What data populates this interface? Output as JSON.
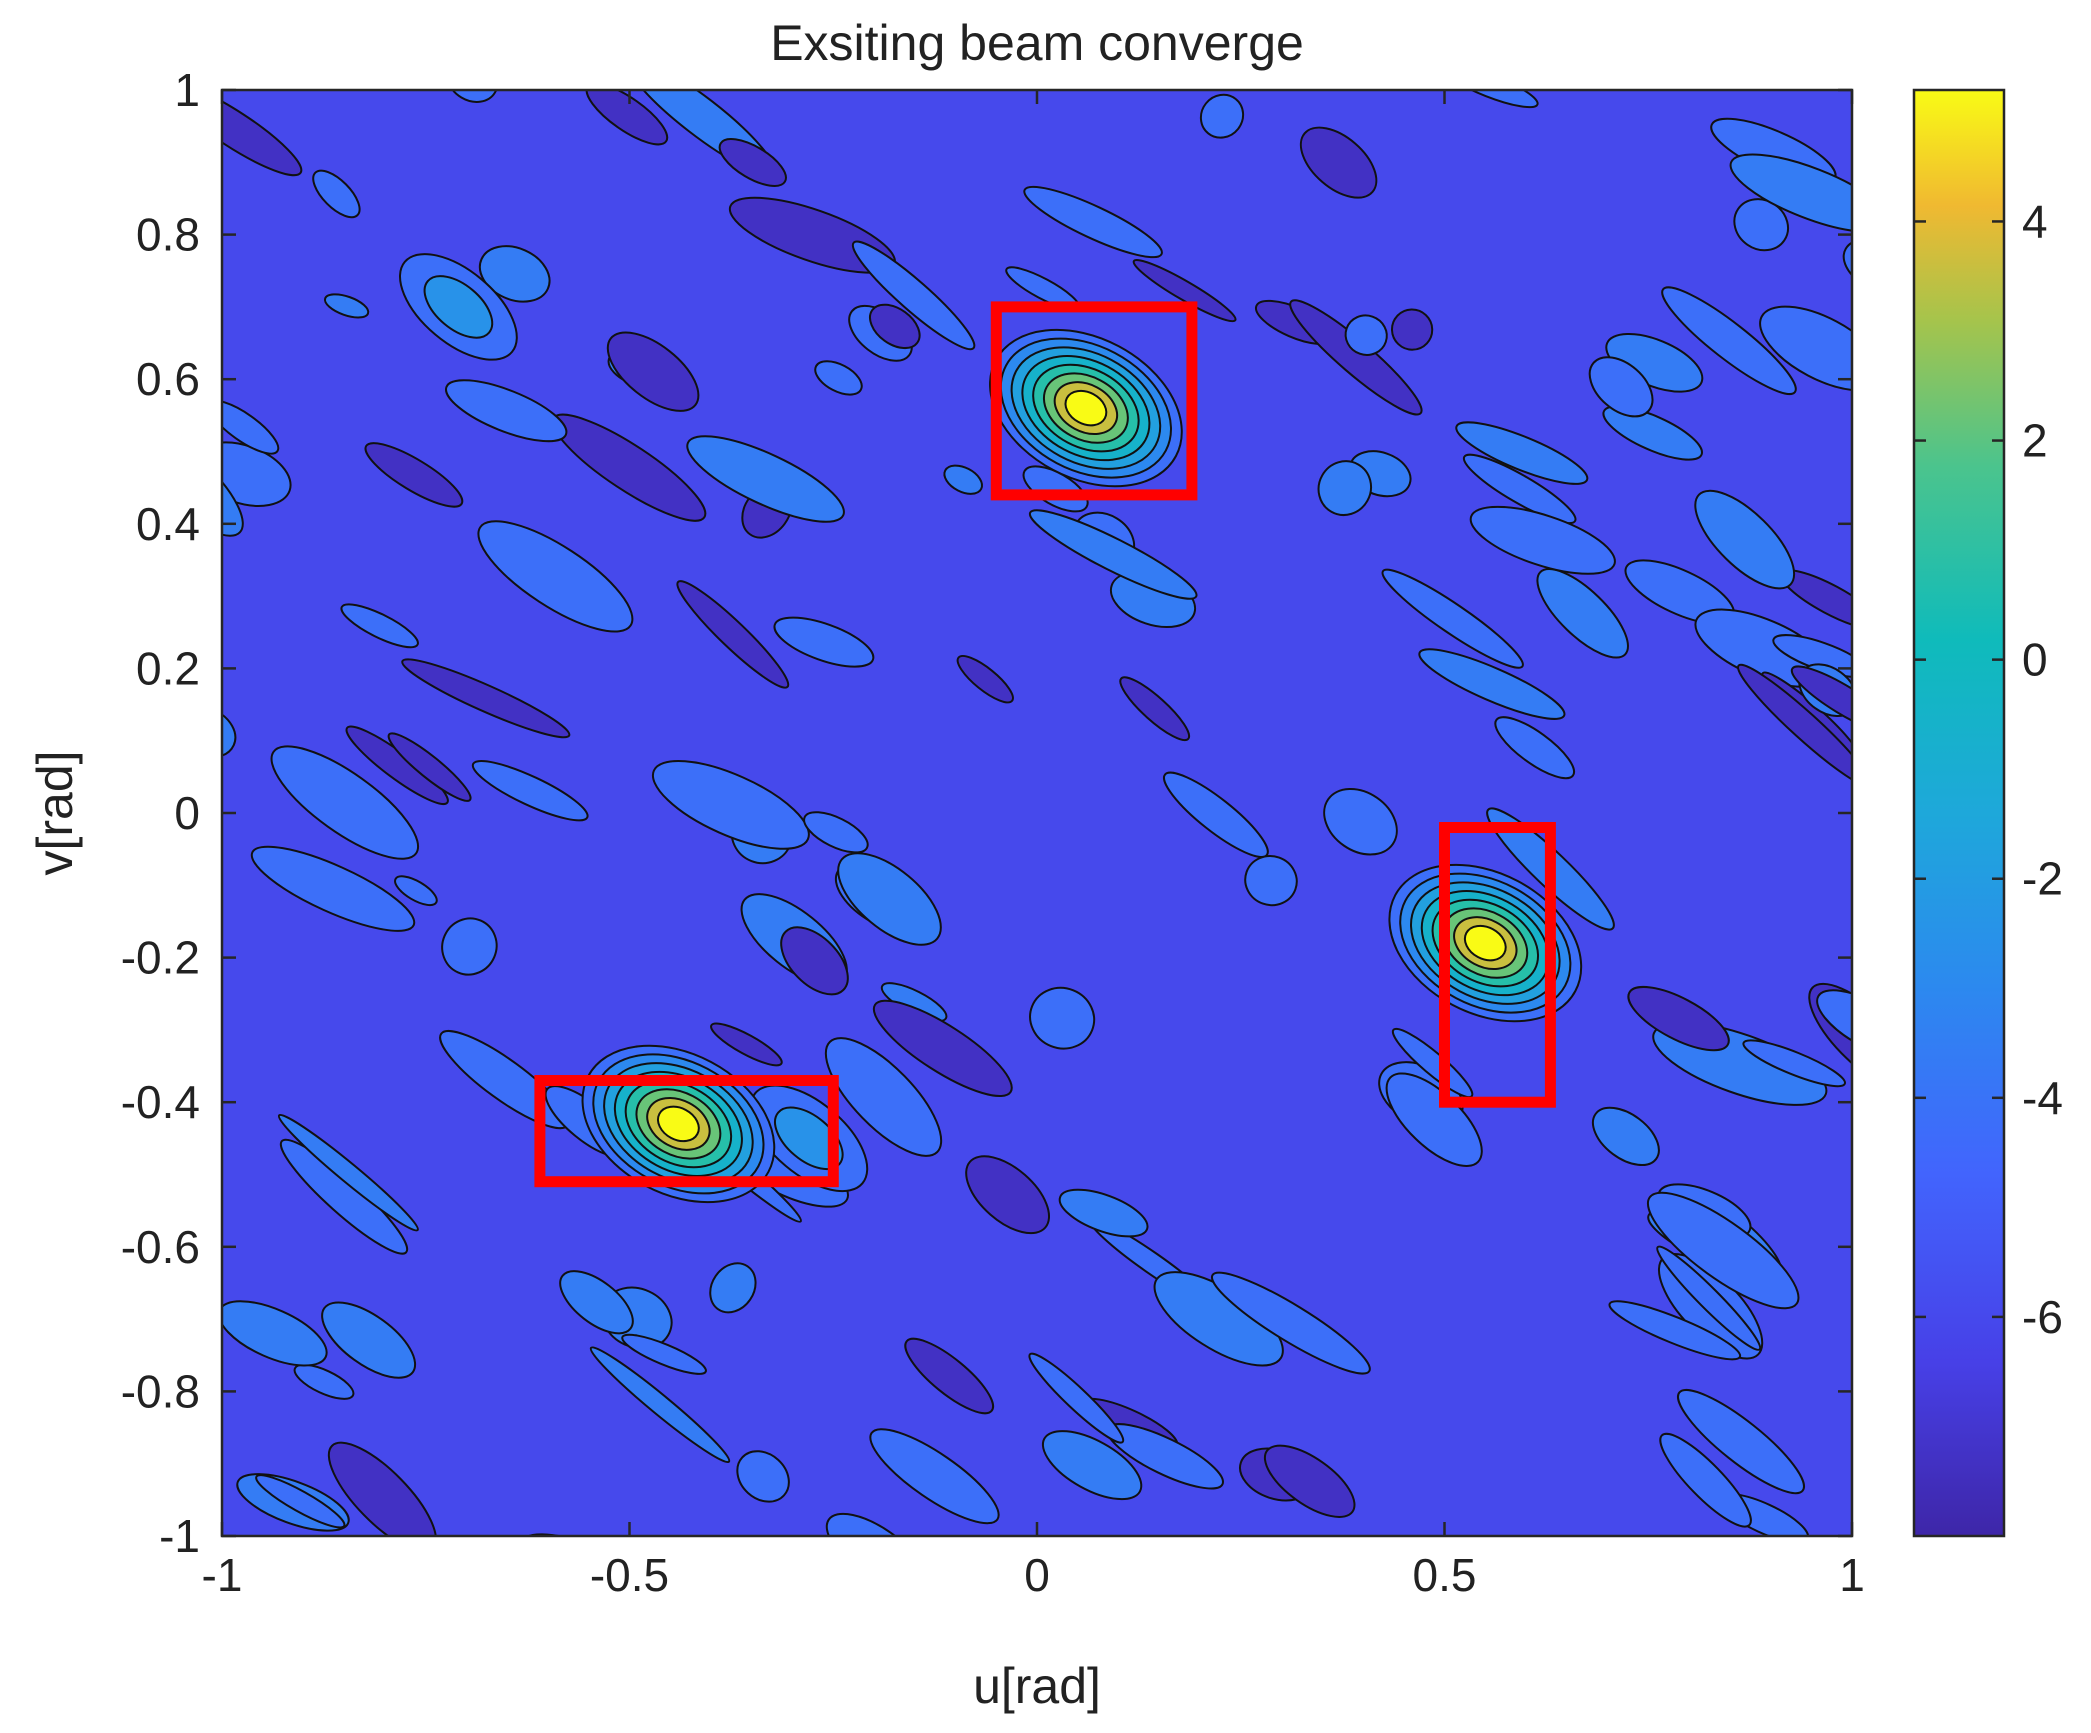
{
  "chart_data": {
    "type": "contour",
    "title": "Exsiting beam converge",
    "xlabel": "u[rad]",
    "ylabel": "v[rad]",
    "xlim": [
      -1,
      1
    ],
    "ylim": [
      -1,
      1
    ],
    "xticks": [
      -1,
      -0.5,
      0,
      0.5,
      1
    ],
    "xtick_labels": [
      "-1",
      "-0.5",
      "0",
      "0.5",
      "1"
    ],
    "yticks": [
      1,
      0.8,
      0.6,
      0.4,
      0.2,
      0,
      -0.2,
      -0.4,
      -0.6,
      -0.8,
      -1
    ],
    "ytick_labels": [
      "1",
      "0.8",
      "0.6",
      "0.4",
      "0.2",
      "0",
      "-0.2",
      "-0.4",
      "-0.6",
      "-0.8",
      "-1"
    ],
    "colorbar": {
      "colormap": "parula",
      "range": [
        -8,
        5.2
      ],
      "ticks": [
        4,
        2,
        0,
        -2,
        -4,
        -6
      ],
      "tick_labels": [
        "4",
        "2",
        "0",
        "-2",
        "-4",
        "-6"
      ]
    },
    "background_level": -6,
    "peaks": [
      {
        "u": 0.06,
        "v": 0.56,
        "level": 5.2
      },
      {
        "u": 0.55,
        "v": -0.18,
        "level": 5.2
      },
      {
        "u": -0.44,
        "v": -0.43,
        "level": 5.2
      }
    ],
    "secondary_lobes": [
      {
        "u": -0.71,
        "v": 0.7,
        "level": -2.5
      },
      {
        "u": -0.28,
        "v": -0.45,
        "level": -2.5
      }
    ],
    "highlight_boxes": [
      {
        "u": [
          -0.05,
          0.19
        ],
        "v": [
          0.44,
          0.7
        ],
        "color": "#ff0000"
      },
      {
        "u": [
          0.5,
          0.63
        ],
        "v": [
          -0.4,
          -0.02
        ],
        "color": "#ff0000"
      },
      {
        "u": [
          -0.61,
          -0.25
        ],
        "v": [
          -0.51,
          -0.37
        ],
        "color": "#ff0000"
      }
    ]
  }
}
